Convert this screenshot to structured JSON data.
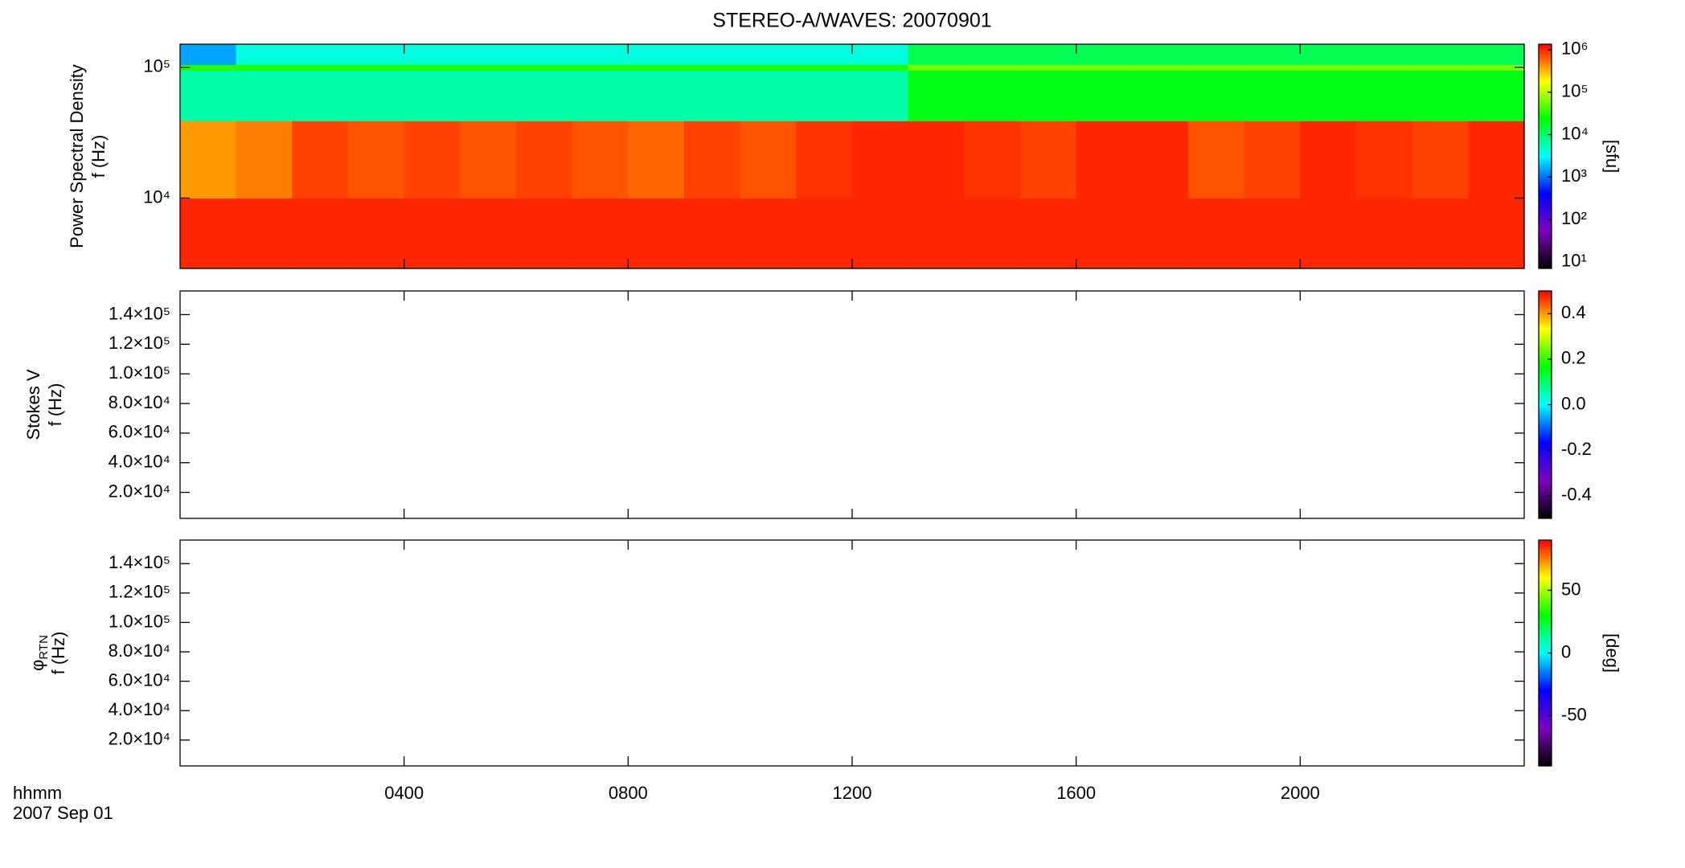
{
  "chart_data": [
    {
      "type": "heatmap",
      "title": "STEREO-A/WAVES: 20070901",
      "ylabel": [
        "Power Spectral Density",
        "f (Hz)"
      ],
      "ylog": true,
      "ylim": [
        2900,
        150000
      ],
      "yticks": [
        {
          "value": 10000,
          "label": "10⁴"
        },
        {
          "value": 100000,
          "label": "10⁵"
        }
      ],
      "xlim": [
        0,
        24
      ],
      "xticks": [
        4,
        8,
        12,
        16,
        20
      ],
      "x_edges": [
        0,
        1,
        2,
        3,
        4,
        5,
        6,
        7,
        8,
        9,
        10,
        11,
        12,
        13,
        14,
        15,
        16,
        17,
        18,
        19,
        20,
        21,
        22,
        23,
        24
      ],
      "y_edges": [
        2900,
        10000,
        39000,
        95000,
        105000,
        150000
      ],
      "values": [
        [
          1000000,
          1000000,
          1000000,
          1000000,
          1000000,
          1000000,
          1000000,
          1000000,
          1000000,
          1000000,
          1000000,
          1000000,
          1000000,
          1000000,
          1000000,
          1000000,
          1000000,
          1000000,
          1000000,
          1000000,
          1000000,
          1000000,
          1000000,
          1000000
        ],
        [
          400000,
          500000,
          800000,
          700000,
          800000,
          700000,
          800000,
          700000,
          600000,
          800000,
          700000,
          900000,
          1000000,
          1000000,
          900000,
          800000,
          1000000,
          1000000,
          700000,
          800000,
          1000000,
          900000,
          800000,
          1000000
        ],
        [
          6000,
          6000,
          6000,
          6000,
          6000,
          6000,
          6000,
          6000,
          6000,
          6000,
          6000,
          6000,
          6000,
          20000,
          20000,
          20000,
          20000,
          20000,
          20000,
          20000,
          20000,
          20000,
          20000,
          20000
        ],
        [
          30000,
          30000,
          30000,
          30000,
          30000,
          30000,
          30000,
          30000,
          30000,
          30000,
          30000,
          30000,
          30000,
          60000,
          60000,
          60000,
          60000,
          60000,
          60000,
          60000,
          60000,
          60000,
          60000,
          60000
        ],
        [
          1500,
          4000,
          4000,
          4000,
          4000,
          4000,
          4000,
          4000,
          4000,
          4000,
          4000,
          4000,
          4000,
          12000,
          12000,
          12000,
          12000,
          12000,
          12000,
          12000,
          12000,
          12000,
          12000,
          12000
        ]
      ],
      "colormap": [
        "#000000",
        "#8000c0",
        "#0000ff",
        "#00ffff",
        "#00ff00",
        "#ffff00",
        "#ff0000"
      ],
      "colorbar": {
        "label": "[sfu]",
        "log": true,
        "lim": [
          7,
          1350000
        ],
        "ticks": [
          {
            "value": 10,
            "label": "10¹"
          },
          {
            "value": 100,
            "label": "10²"
          },
          {
            "value": 1000,
            "label": "10³"
          },
          {
            "value": 10000,
            "label": "10⁴"
          },
          {
            "value": 100000,
            "label": "10⁵"
          },
          {
            "value": 1000000,
            "label": "10⁶"
          }
        ]
      }
    },
    {
      "type": "heatmap",
      "ylabel": [
        "Stokes V",
        "f (Hz)"
      ],
      "ylim": [
        2400,
        156000
      ],
      "yticks": [
        {
          "value": 20000,
          "label": "2.0×10⁴"
        },
        {
          "value": 40000,
          "label": "4.0×10⁴"
        },
        {
          "value": 60000,
          "label": "6.0×10⁴"
        },
        {
          "value": 80000,
          "label": "8.0×10⁴"
        },
        {
          "value": 100000,
          "label": "1.0×10⁵"
        },
        {
          "value": 120000,
          "label": "1.2×10⁵"
        },
        {
          "value": 140000,
          "label": "1.4×10⁵"
        }
      ],
      "xlim": [
        0,
        24
      ],
      "xticks": [
        4,
        8,
        12,
        16,
        20
      ],
      "colormap": [
        "#000000",
        "#8000c0",
        "#0000ff",
        "#00ffff",
        "#00ff00",
        "#ffff00",
        "#ff0000"
      ],
      "colorbar": {
        "log": false,
        "lim": [
          -0.5,
          0.5
        ],
        "ticks": [
          -0.4,
          -0.2,
          {
            "value": 0,
            "label": "0.0"
          },
          0.2,
          0.4
        ]
      }
    },
    {
      "type": "heatmap",
      "ylabel_symbol": "φ",
      "ylabel_subscript": "RTN",
      "ylabel": [
        "f (Hz)"
      ],
      "ylim": [
        2400,
        156000
      ],
      "yticks": [
        {
          "value": 20000,
          "label": "2.0×10⁴"
        },
        {
          "value": 40000,
          "label": "4.0×10⁴"
        },
        {
          "value": 60000,
          "label": "6.0×10⁴"
        },
        {
          "value": 80000,
          "label": "8.0×10⁴"
        },
        {
          "value": 100000,
          "label": "1.0×10⁵"
        },
        {
          "value": 120000,
          "label": "1.2×10⁵"
        },
        {
          "value": 140000,
          "label": "1.4×10⁵"
        }
      ],
      "xlim": [
        0,
        24
      ],
      "xticks": [
        {
          "value": 4,
          "label": "0400"
        },
        {
          "value": 8,
          "label": "0800"
        },
        {
          "value": 12,
          "label": "1200"
        },
        {
          "value": 16,
          "label": "1600"
        },
        {
          "value": 20,
          "label": "2000"
        }
      ],
      "xlabel": "hhmm",
      "date_label": "2007 Sep 01",
      "colormap": [
        "#000000",
        "#8000c0",
        "#0000ff",
        "#00ffff",
        "#00ff00",
        "#ffff00",
        "#ff0000"
      ],
      "colorbar": {
        "label": "[deg]",
        "log": false,
        "lim": [
          -90,
          90
        ],
        "ticks": [
          -50,
          0,
          50
        ]
      }
    }
  ]
}
